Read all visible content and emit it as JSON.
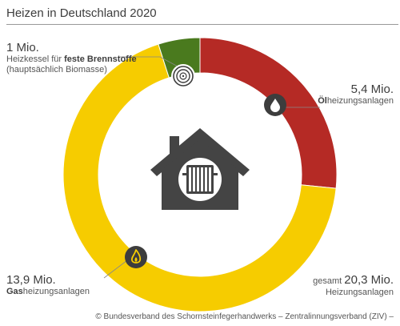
{
  "title": "Heizen in Deutschland 2020",
  "chart_data": {
    "type": "pie",
    "title": "Heizen in Deutschland 2020",
    "unit": "Mio.",
    "categories": [
      "Ölheizungsanlagen",
      "Gasheizungsanlagen",
      "Heizkessel für feste Brennstoffe"
    ],
    "values": [
      5.4,
      13.9,
      1.0
    ],
    "total": 20.3,
    "series_colors": [
      "#b52a25",
      "#f6cc00",
      "#4a7a1e"
    ],
    "center_icon": "house-radiator-icon",
    "segment_icons": [
      "oil-drop-icon",
      "gas-flame-icon",
      "log-wood-icon"
    ]
  },
  "labels": {
    "oil": {
      "value": "5,4 Mio.",
      "bold_part": "Öl",
      "rest": "heizungsanlagen"
    },
    "gas": {
      "value": "13,9 Mio.",
      "bold_part": "Gas",
      "rest": "heizungsanlagen"
    },
    "solid": {
      "value": "1 Mio.",
      "line1_prefix": "Heizkessel für ",
      "line1_bold": "feste Brennstoffe",
      "line2": "(hauptsächlich Biomasse)"
    },
    "total": {
      "prefix": "gesamt ",
      "value": "20,3 Mio.",
      "caption": "Heizungsanlagen"
    }
  },
  "source": "© Bundesverband des Schornsteinfegerhandwerks – Zentralinnungsverband (ZIV) –"
}
